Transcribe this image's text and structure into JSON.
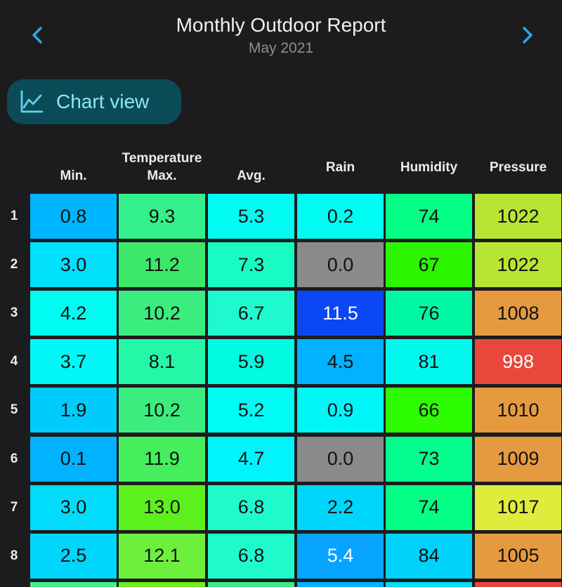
{
  "header": {
    "title": "Monthly Outdoor Report",
    "subtitle": "May 2021",
    "prev_icon": "chevron-left-icon",
    "next_icon": "chevron-right-icon"
  },
  "chart_button": {
    "label": "Chart view",
    "icon": "line-chart-icon"
  },
  "table": {
    "group_header": "Temperature",
    "columns": [
      "Min.",
      "Max.",
      "Avg.",
      "Rain",
      "Humidity",
      "Pressure"
    ],
    "rows": [
      {
        "day": "1",
        "cells": [
          {
            "value": "0.8",
            "color": "#00b5ff",
            "text": "#111111"
          },
          {
            "value": "9.3",
            "color": "#33f08c",
            "text": "#111111"
          },
          {
            "value": "5.3",
            "color": "#00fcf2",
            "text": "#111111"
          },
          {
            "value": "0.2",
            "color": "#00fcf2",
            "text": "#111111"
          },
          {
            "value": "74",
            "color": "#03ff84",
            "text": "#111111"
          },
          {
            "value": "1022",
            "color": "#b8e533",
            "text": "#111111"
          }
        ]
      },
      {
        "day": "2",
        "cells": [
          {
            "value": "3.0",
            "color": "#00e0fb",
            "text": "#111111"
          },
          {
            "value": "11.2",
            "color": "#3be86a",
            "text": "#111111"
          },
          {
            "value": "7.3",
            "color": "#17fcc3",
            "text": "#111111"
          },
          {
            "value": "0.0",
            "color": "#8a8a8a",
            "text": "#111111"
          },
          {
            "value": "67",
            "color": "#2bf500",
            "text": "#111111"
          },
          {
            "value": "1022",
            "color": "#b8e533",
            "text": "#111111"
          }
        ]
      },
      {
        "day": "3",
        "cells": [
          {
            "value": "4.2",
            "color": "#00fcf0",
            "text": "#111111"
          },
          {
            "value": "10.2",
            "color": "#3bed7e",
            "text": "#111111"
          },
          {
            "value": "6.7",
            "color": "#1ef9ce",
            "text": "#111111"
          },
          {
            "value": "11.5",
            "color": "#0c47f5",
            "text": "#ffffff"
          },
          {
            "value": "76",
            "color": "#00f7a5",
            "text": "#111111"
          },
          {
            "value": "1008",
            "color": "#e69a40",
            "text": "#111111"
          }
        ]
      },
      {
        "day": "4",
        "cells": [
          {
            "value": "3.7",
            "color": "#00f7f7",
            "text": "#111111"
          },
          {
            "value": "8.1",
            "color": "#25f7a9",
            "text": "#111111"
          },
          {
            "value": "5.9",
            "color": "#00fae2",
            "text": "#111111"
          },
          {
            "value": "4.5",
            "color": "#00b2ff",
            "text": "#111111"
          },
          {
            "value": "81",
            "color": "#00fbee",
            "text": "#111111"
          },
          {
            "value": "998",
            "color": "#e8473b",
            "text": "#ffffff"
          }
        ]
      },
      {
        "day": "5",
        "cells": [
          {
            "value": "1.9",
            "color": "#00ccfc",
            "text": "#111111"
          },
          {
            "value": "10.2",
            "color": "#3bed7e",
            "text": "#111111"
          },
          {
            "value": "5.2",
            "color": "#00fcf4",
            "text": "#111111"
          },
          {
            "value": "0.9",
            "color": "#00f7f7",
            "text": "#111111"
          },
          {
            "value": "66",
            "color": "#2efc00",
            "text": "#111111"
          },
          {
            "value": "1010",
            "color": "#e69a40",
            "text": "#111111"
          }
        ]
      },
      {
        "day": "6",
        "cells": [
          {
            "value": "0.1",
            "color": "#00b2ff",
            "text": "#111111"
          },
          {
            "value": "11.9",
            "color": "#44ee5c",
            "text": "#111111"
          },
          {
            "value": "4.7",
            "color": "#00f4fb",
            "text": "#111111"
          },
          {
            "value": "0.0",
            "color": "#8a8a8a",
            "text": "#111111"
          },
          {
            "value": "73",
            "color": "#04fe8e",
            "text": "#111111"
          },
          {
            "value": "1009",
            "color": "#e69a40",
            "text": "#111111"
          }
        ]
      },
      {
        "day": "7",
        "cells": [
          {
            "value": "3.0",
            "color": "#00dcf9",
            "text": "#111111"
          },
          {
            "value": "13.0",
            "color": "#5cf01c",
            "text": "#111111"
          },
          {
            "value": "6.8",
            "color": "#1ffacd",
            "text": "#111111"
          },
          {
            "value": "2.2",
            "color": "#00d5fb",
            "text": "#111111"
          },
          {
            "value": "74",
            "color": "#03ff84",
            "text": "#111111"
          },
          {
            "value": "1017",
            "color": "#dfec3c",
            "text": "#111111"
          }
        ]
      },
      {
        "day": "8",
        "cells": [
          {
            "value": "2.5",
            "color": "#00d5fb",
            "text": "#111111"
          },
          {
            "value": "12.1",
            "color": "#6df03c",
            "text": "#111111"
          },
          {
            "value": "6.8",
            "color": "#1ffacd",
            "text": "#111111"
          },
          {
            "value": "5.4",
            "color": "#06a4ff",
            "text": "#ffffff"
          },
          {
            "value": "84",
            "color": "#00d2fa",
            "text": "#111111"
          },
          {
            "value": "1005",
            "color": "#e69a40",
            "text": "#111111"
          }
        ]
      },
      {
        "day": "",
        "cells": [
          {
            "value": "",
            "color": "#43ef86",
            "text": "#111111"
          },
          {
            "value": "",
            "color": "#6fef1c",
            "text": "#111111"
          },
          {
            "value": "",
            "color": "#3bed7e",
            "text": "#111111"
          },
          {
            "value": "",
            "color": "#00b5ff",
            "text": "#111111"
          },
          {
            "value": "",
            "color": "#00e0fb",
            "text": "#111111"
          },
          {
            "value": "",
            "color": "#e8473b",
            "text": "#111111"
          }
        ]
      }
    ]
  }
}
